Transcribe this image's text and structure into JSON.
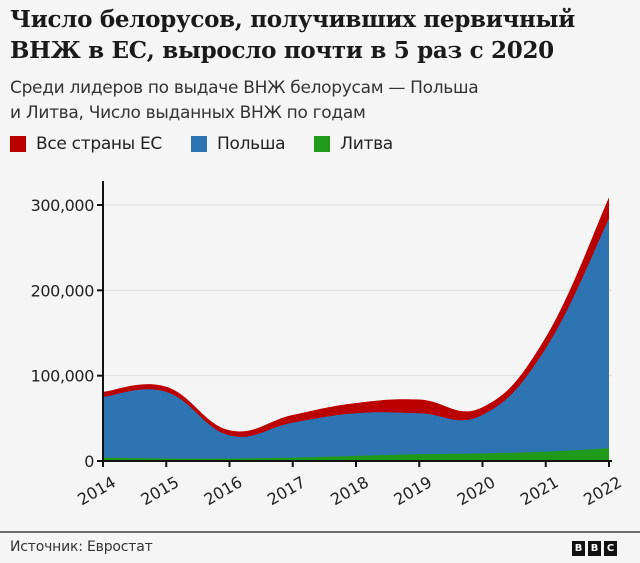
{
  "title": {
    "line1": "Число белорусов, получивших первичный",
    "line2": "ВНЖ в ЕС, выросло почти в 5 раз с 2020"
  },
  "subtitle": {
    "line1": "Среди лидеров по выдаче ВНЖ белорусам — Польша",
    "line2": "и Литва, Число выданных ВНЖ по годам"
  },
  "legend": [
    {
      "label": "Все страны ЕС",
      "color": "#bb0000"
    },
    {
      "label": "Польша",
      "color": "#2e73b2"
    },
    {
      "label": "Литва",
      "color": "#209a1b"
    }
  ],
  "footer": {
    "source": "Источник: Евростат",
    "logo": [
      "B",
      "B",
      "C"
    ]
  },
  "chart_data": {
    "type": "area",
    "title": "Число белорусов, получивших первичный ВНЖ в ЕС, выросло почти в 5 раз с 2020",
    "subtitle": "Среди лидеров по выдаче ВНЖ белорусам — Польша и Литва, Число выданных ВНЖ по годам",
    "x": [
      "2014",
      "2015",
      "2016",
      "2017",
      "2018",
      "2019",
      "2020",
      "2021",
      "2022"
    ],
    "series": [
      {
        "name": "Все страны ЕС",
        "color": "#bb0000",
        "values": [
          81000,
          87000,
          36000,
          54000,
          68000,
          72000,
          63000,
          145000,
          309000
        ]
      },
      {
        "name": "Польша",
        "color": "#2e73b2",
        "values": [
          75000,
          81000,
          30000,
          45000,
          56000,
          56000,
          54000,
          132000,
          284000
        ]
      },
      {
        "name": "Литва",
        "color": "#209a1b",
        "values": [
          4000,
          3000,
          3000,
          4000,
          6000,
          8000,
          9000,
          11000,
          15000
        ]
      }
    ],
    "xlabel": "",
    "ylabel": "",
    "ylim": [
      0,
      300000
    ],
    "yticks": [
      0,
      100000,
      200000,
      300000
    ],
    "ytick_labels": [
      "0",
      "100,000",
      "200,000",
      "300,000"
    ],
    "grid": true,
    "legend_position": "top",
    "stacked": false,
    "source": "Источник: Евростат"
  }
}
